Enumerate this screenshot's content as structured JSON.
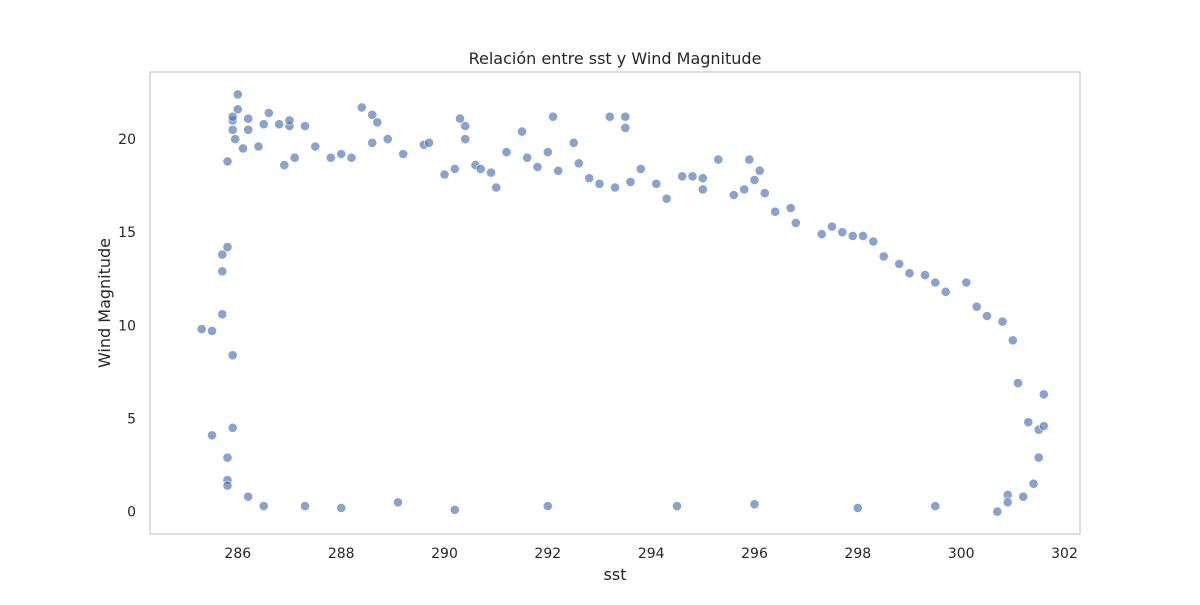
{
  "chart_data": {
    "type": "scatter",
    "title": "Relación entre sst y Wind Magnitude",
    "xlabel": "sst",
    "ylabel": "Wind Magnitude",
    "xlim": [
      284.3,
      302.3
    ],
    "ylim": [
      -1.2,
      23.6
    ],
    "xticks": [
      286,
      288,
      290,
      292,
      294,
      296,
      298,
      300,
      302
    ],
    "yticks": [
      0,
      5,
      10,
      15,
      20
    ],
    "grid": false,
    "legend": "none",
    "point_color": "#4c72b0",
    "point_opacity": 0.65,
    "series": [
      {
        "points": [
          [
            285.3,
            9.8
          ],
          [
            285.5,
            9.7
          ],
          [
            285.5,
            4.1
          ],
          [
            285.7,
            13.8
          ],
          [
            285.7,
            12.9
          ],
          [
            285.7,
            10.6
          ],
          [
            285.8,
            2.9
          ],
          [
            285.8,
            1.7
          ],
          [
            285.8,
            1.4
          ],
          [
            285.8,
            18.8
          ],
          [
            285.8,
            14.2
          ],
          [
            285.9,
            21.0
          ],
          [
            285.9,
            21.2
          ],
          [
            285.9,
            20.5
          ],
          [
            285.9,
            4.5
          ],
          [
            285.9,
            8.4
          ],
          [
            286.0,
            22.4
          ],
          [
            286.0,
            21.6
          ],
          [
            285.95,
            20.0
          ],
          [
            286.1,
            19.5
          ],
          [
            286.2,
            20.5
          ],
          [
            286.2,
            21.1
          ],
          [
            286.4,
            19.6
          ],
          [
            286.6,
            21.4
          ],
          [
            286.5,
            20.8
          ],
          [
            286.8,
            20.8
          ],
          [
            287.0,
            20.7
          ],
          [
            287.0,
            21.0
          ],
          [
            287.3,
            20.7
          ],
          [
            286.9,
            18.6
          ],
          [
            287.1,
            19.0
          ],
          [
            287.5,
            19.6
          ],
          [
            287.8,
            19.0
          ],
          [
            288.0,
            19.2
          ],
          [
            288.2,
            19.0
          ],
          [
            288.4,
            21.7
          ],
          [
            288.6,
            21.3
          ],
          [
            288.7,
            20.9
          ],
          [
            288.9,
            20.0
          ],
          [
            288.6,
            19.8
          ],
          [
            289.2,
            19.2
          ],
          [
            289.6,
            19.7
          ],
          [
            289.7,
            19.8
          ],
          [
            290.0,
            18.1
          ],
          [
            290.3,
            21.1
          ],
          [
            290.4,
            20.7
          ],
          [
            290.4,
            20.0
          ],
          [
            290.2,
            18.4
          ],
          [
            290.6,
            18.6
          ],
          [
            290.7,
            18.4
          ],
          [
            290.9,
            18.2
          ],
          [
            291.0,
            17.4
          ],
          [
            291.2,
            19.3
          ],
          [
            291.5,
            20.4
          ],
          [
            291.6,
            19.0
          ],
          [
            291.8,
            18.5
          ],
          [
            292.1,
            21.2
          ],
          [
            292.0,
            19.3
          ],
          [
            292.2,
            18.3
          ],
          [
            292.5,
            19.8
          ],
          [
            292.6,
            18.7
          ],
          [
            292.8,
            17.9
          ],
          [
            293.0,
            17.6
          ],
          [
            293.2,
            21.2
          ],
          [
            293.5,
            21.2
          ],
          [
            293.5,
            20.6
          ],
          [
            293.3,
            17.4
          ],
          [
            293.6,
            17.7
          ],
          [
            293.8,
            18.4
          ],
          [
            294.1,
            17.6
          ],
          [
            294.3,
            16.8
          ],
          [
            294.6,
            18.0
          ],
          [
            294.8,
            18.0
          ],
          [
            295.0,
            17.9
          ],
          [
            295.0,
            17.3
          ],
          [
            295.3,
            18.9
          ],
          [
            295.6,
            17.0
          ],
          [
            295.8,
            17.3
          ],
          [
            295.9,
            18.9
          ],
          [
            296.0,
            17.8
          ],
          [
            296.1,
            18.3
          ],
          [
            296.2,
            17.1
          ],
          [
            296.4,
            16.1
          ],
          [
            296.7,
            16.3
          ],
          [
            296.8,
            15.5
          ],
          [
            297.3,
            14.9
          ],
          [
            297.5,
            15.3
          ],
          [
            297.7,
            15.0
          ],
          [
            297.9,
            14.8
          ],
          [
            298.1,
            14.8
          ],
          [
            298.3,
            14.5
          ],
          [
            298.5,
            13.7
          ],
          [
            298.8,
            13.3
          ],
          [
            299.0,
            12.8
          ],
          [
            299.3,
            12.7
          ],
          [
            299.5,
            12.3
          ],
          [
            299.7,
            11.8
          ],
          [
            300.1,
            12.3
          ],
          [
            300.3,
            11.0
          ],
          [
            300.5,
            10.5
          ],
          [
            300.8,
            10.2
          ],
          [
            301.0,
            9.2
          ],
          [
            301.1,
            6.9
          ],
          [
            301.3,
            4.8
          ],
          [
            301.5,
            4.4
          ],
          [
            301.6,
            6.3
          ],
          [
            301.6,
            4.6
          ],
          [
            301.5,
            2.9
          ],
          [
            301.4,
            1.5
          ],
          [
            301.2,
            0.8
          ],
          [
            300.9,
            0.9
          ],
          [
            300.7,
            0.0
          ],
          [
            300.9,
            0.5
          ],
          [
            299.5,
            0.3
          ],
          [
            296.0,
            0.4
          ],
          [
            292.0,
            0.3
          ],
          [
            288.0,
            0.2
          ],
          [
            286.5,
            0.3
          ],
          [
            290.2,
            0.1
          ],
          [
            294.5,
            0.3
          ],
          [
            298.0,
            0.2
          ],
          [
            286.2,
            0.8
          ],
          [
            287.3,
            0.3
          ],
          [
            289.1,
            0.5
          ]
        ]
      }
    ]
  }
}
